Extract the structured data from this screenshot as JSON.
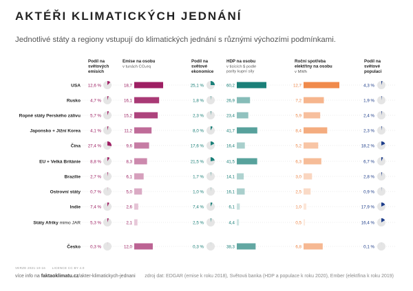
{
  "title": "AKTÉŘI KLIMATICKÝCH JEDNÁNÍ",
  "subtitle": "Jednotlivé státy a regiony vstupují do klimatických jednání s různými výchozími podmínkami.",
  "footer": {
    "version": "VERZE 2021-10-16",
    "license": "LICENCE CC BY 4.0",
    "more_info_prefix": "více info na ",
    "more_info_site": "faktaoklimatu.cz",
    "more_info_path": "/akter-klimatickych-jednani",
    "source": "zdroj dat: EDGAR (emise k roku 2018), Světová banka (HDP a populace k roku 2020), Ember (elektřina k roku 2019)"
  },
  "colors": {
    "emissions": "#9e1f63",
    "economy": "#1b8079",
    "electricity": "#f08a4b",
    "population": "#1f3f8c",
    "pie_bg": "#e5e5e5"
  },
  "chart_data": {
    "type": "table",
    "columns": [
      {
        "key": "emissions_share",
        "title": [
          "Podíl na",
          "světových",
          "emisích"
        ],
        "kind": "pie",
        "color_key": "emissions"
      },
      {
        "key": "emissions_pc",
        "title": [
          "Emise na osobu"
        ],
        "subtitle": [
          "v tunách CO₂eq"
        ],
        "kind": "bar",
        "color_key": "emissions",
        "max": 18.7
      },
      {
        "key": "economy_share",
        "title": [
          "Podíl na",
          "světové",
          "ekonomice"
        ],
        "kind": "pie",
        "color_key": "economy"
      },
      {
        "key": "gdp_pc",
        "title": [
          "HDP na osobu"
        ],
        "subtitle": [
          "v tisících $ podle",
          "parity kupní síly"
        ],
        "kind": "bar",
        "color_key": "economy",
        "max": 60.2
      },
      {
        "key": "electricity_pc",
        "title": [
          "Roční spotřeba",
          "elektřiny na osobu"
        ],
        "subtitle": [
          "v MWh"
        ],
        "kind": "bar",
        "color_key": "electricity",
        "max": 12.7
      },
      {
        "key": "population_share",
        "title": [
          "Podíl na",
          "světové",
          "populaci"
        ],
        "kind": "pie",
        "color_key": "population"
      }
    ],
    "rows": [
      {
        "name": "USA",
        "name_suffix": "",
        "emissions_share": 12.6,
        "emissions_pc": 18.7,
        "economy_share": 25.1,
        "gdp_pc": 60.2,
        "electricity_pc": 12.7,
        "population_share": 4.3
      },
      {
        "name": "Rusko",
        "name_suffix": "",
        "emissions_share": 4.7,
        "emissions_pc": 16.1,
        "economy_share": 1.8,
        "gdp_pc": 26.9,
        "electricity_pc": 7.2,
        "population_share": 1.9
      },
      {
        "name": "Ropné státy Perského zálivu",
        "name_suffix": "",
        "emissions_share": 5.7,
        "emissions_pc": 15.2,
        "economy_share": 2.3,
        "gdp_pc": 23.4,
        "electricity_pc": 5.9,
        "population_share": 2.4
      },
      {
        "name": "Japonsko + Jižní Korea",
        "name_suffix": "",
        "emissions_share": 4.1,
        "emissions_pc": 11.2,
        "economy_share": 8.0,
        "gdp_pc": 41.7,
        "electricity_pc": 8.4,
        "population_share": 2.3
      },
      {
        "name": "Čína",
        "name_suffix": "",
        "emissions_share": 27.4,
        "emissions_pc": 9.6,
        "economy_share": 17.6,
        "gdp_pc": 16.4,
        "electricity_pc": 5.2,
        "population_share": 18.2
      },
      {
        "name": "EU + Velká Británie",
        "name_suffix": "",
        "emissions_share": 8.8,
        "emissions_pc": 8.3,
        "economy_share": 21.5,
        "gdp_pc": 41.5,
        "electricity_pc": 6.3,
        "population_share": 6.7
      },
      {
        "name": "Brazílie",
        "name_suffix": "",
        "emissions_share": 2.7,
        "emissions_pc": 6.1,
        "economy_share": 1.7,
        "gdp_pc": 14.1,
        "electricity_pc": 3.0,
        "population_share": 2.8
      },
      {
        "name": "Ostrovní státy",
        "name_suffix": "",
        "emissions_share": 0.7,
        "emissions_pc": 5.0,
        "economy_share": 1.0,
        "gdp_pc": 16.1,
        "electricity_pc": 2.5,
        "population_share": 0.9
      },
      {
        "name": "Indie",
        "name_suffix": "",
        "emissions_share": 7.4,
        "emissions_pc": 2.6,
        "economy_share": 7.4,
        "gdp_pc": 6.1,
        "electricity_pc": 1.0,
        "population_share": 17.9
      },
      {
        "name": "Státy Afriky",
        "name_suffix": " mimo JAR",
        "emissions_share": 5.3,
        "emissions_pc": 2.1,
        "economy_share": 2.5,
        "gdp_pc": 4.4,
        "electricity_pc": 0.5,
        "population_share": 16.4
      },
      {
        "name": "Česko",
        "name_suffix": "",
        "emissions_share": 0.3,
        "emissions_pc": 12.0,
        "economy_share": 0.3,
        "gdp_pc": 38.3,
        "electricity_pc": 6.8,
        "population_share": 0.1
      }
    ]
  }
}
